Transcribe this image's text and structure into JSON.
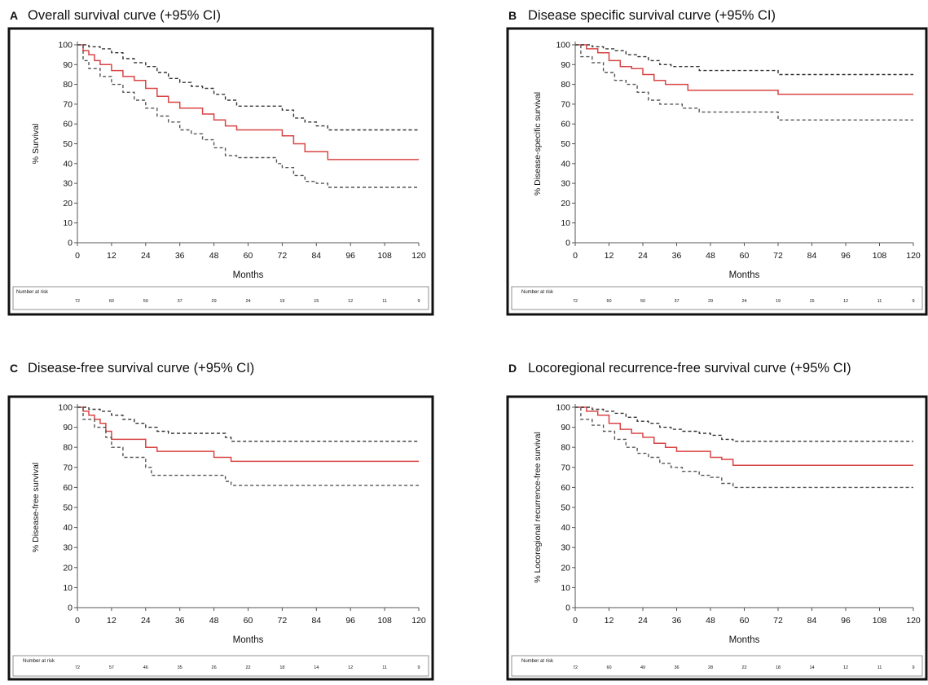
{
  "chart_data": [
    {
      "type": "line",
      "letter": "A",
      "title": "Overall survival curve (+95% CI)",
      "xlabel": "Months",
      "ylabel": "% Survival",
      "xlim": [
        0,
        120
      ],
      "ylim": [
        0,
        100
      ],
      "x_ticks": [
        "0",
        "12",
        "24",
        "36",
        "48",
        "60",
        "72",
        "84",
        "96",
        "108",
        "120"
      ],
      "y_ticks": [
        "0",
        "10",
        "20",
        "30",
        "40",
        "50",
        "60",
        "70",
        "80",
        "90",
        "100"
      ],
      "risk_title": "Number at risk",
      "risk_numbers": [
        "72",
        "60",
        "50",
        "37",
        "29",
        "24",
        "19",
        "15",
        "12",
        "11",
        "9"
      ],
      "series": [
        {
          "role": "estimate",
          "color": "#d94444",
          "x": [
            0,
            2,
            4,
            6,
            8,
            12,
            16,
            20,
            24,
            28,
            32,
            36,
            40,
            44,
            48,
            52,
            56,
            60,
            70,
            72,
            76,
            80,
            84,
            88,
            120
          ],
          "y": [
            100,
            97,
            95,
            92,
            90,
            87,
            84,
            82,
            78,
            74,
            71,
            68,
            68,
            65,
            62,
            59,
            57,
            57,
            57,
            54,
            50,
            46,
            46,
            42,
            42
          ]
        },
        {
          "role": "upper",
          "color": "#333333",
          "x": [
            0,
            4,
            8,
            12,
            16,
            20,
            24,
            28,
            32,
            36,
            40,
            44,
            48,
            52,
            56,
            60,
            70,
            72,
            76,
            80,
            84,
            88,
            120
          ],
          "y": [
            100,
            99,
            98,
            96,
            93,
            91,
            89,
            86,
            83,
            81,
            79,
            78,
            75,
            72,
            69,
            69,
            69,
            67,
            63,
            61,
            59,
            57,
            57
          ]
        },
        {
          "role": "lower",
          "color": "#555555",
          "x": [
            0,
            2,
            4,
            8,
            12,
            16,
            20,
            24,
            28,
            32,
            36,
            40,
            44,
            48,
            52,
            56,
            60,
            70,
            72,
            76,
            80,
            84,
            88,
            120
          ],
          "y": [
            100,
            92,
            88,
            84,
            80,
            76,
            72,
            68,
            64,
            61,
            57,
            55,
            52,
            48,
            44,
            43,
            43,
            40,
            38,
            34,
            31,
            30,
            28,
            28
          ]
        }
      ]
    },
    {
      "type": "line",
      "letter": "B",
      "title": "Disease specific survival curve  (+95% CI)",
      "xlabel": "Months",
      "ylabel": "% Disease-specific survival",
      "xlim": [
        0,
        120
      ],
      "ylim": [
        0,
        100
      ],
      "x_ticks": [
        "0",
        "12",
        "24",
        "36",
        "48",
        "60",
        "72",
        "84",
        "96",
        "108",
        "120"
      ],
      "y_ticks": [
        "0",
        "10",
        "20",
        "30",
        "40",
        "50",
        "60",
        "70",
        "80",
        "90",
        "100"
      ],
      "risk_title": "Number at risk",
      "risk_numbers": [
        "72",
        "60",
        "50",
        "37",
        "29",
        "24",
        "19",
        "15",
        "12",
        "11",
        "9"
      ],
      "series": [
        {
          "role": "estimate",
          "color": "#d94444",
          "x": [
            0,
            4,
            8,
            12,
            16,
            20,
            24,
            28,
            32,
            36,
            40,
            44,
            48,
            60,
            72,
            120
          ],
          "y": [
            100,
            98,
            96,
            92,
            89,
            88,
            85,
            82,
            80,
            80,
            77,
            77,
            77,
            77,
            75,
            75
          ]
        },
        {
          "role": "upper",
          "color": "#333333",
          "x": [
            0,
            6,
            10,
            14,
            18,
            22,
            26,
            30,
            34,
            38,
            44,
            48,
            60,
            72,
            120
          ],
          "y": [
            100,
            99,
            98,
            97,
            95,
            94,
            92,
            90,
            89,
            89,
            87,
            87,
            87,
            85,
            85
          ]
        },
        {
          "role": "lower",
          "color": "#555555",
          "x": [
            0,
            2,
            6,
            10,
            14,
            18,
            22,
            26,
            30,
            34,
            38,
            44,
            48,
            60,
            72,
            120
          ],
          "y": [
            100,
            94,
            91,
            86,
            82,
            80,
            76,
            72,
            70,
            70,
            68,
            66,
            66,
            66,
            62,
            62
          ]
        }
      ]
    },
    {
      "type": "line",
      "letter": "C",
      "title": "Disease-free survival curve (+95% CI)",
      "xlabel": "Months",
      "ylabel": "% Disease-free survival",
      "xlim": [
        0,
        120
      ],
      "ylim": [
        0,
        100
      ],
      "x_ticks": [
        "0",
        "12",
        "24",
        "36",
        "48",
        "60",
        "72",
        "84",
        "96",
        "108",
        "120"
      ],
      "y_ticks": [
        "0",
        "10",
        "20",
        "30",
        "40",
        "50",
        "60",
        "70",
        "80",
        "90",
        "100"
      ],
      "risk_title": "Number at risk",
      "risk_numbers": [
        "72",
        "57",
        "46",
        "35",
        "26",
        "22",
        "18",
        "14",
        "12",
        "11",
        "9"
      ],
      "series": [
        {
          "role": "estimate",
          "color": "#d94444",
          "x": [
            0,
            2,
            4,
            6,
            8,
            10,
            12,
            14,
            22,
            24,
            28,
            48,
            54,
            60,
            120
          ],
          "y": [
            100,
            98,
            96,
            94,
            92,
            88,
            84,
            84,
            84,
            80,
            78,
            75,
            73,
            73,
            73
          ]
        },
        {
          "role": "upper",
          "color": "#333333",
          "x": [
            0,
            4,
            8,
            12,
            16,
            20,
            24,
            28,
            32,
            48,
            52,
            54,
            60,
            120
          ],
          "y": [
            100,
            99,
            98,
            96,
            94,
            92,
            90,
            88,
            87,
            87,
            85,
            83,
            83,
            83
          ]
        },
        {
          "role": "lower",
          "color": "#555555",
          "x": [
            0,
            2,
            6,
            10,
            12,
            16,
            20,
            24,
            26,
            28,
            48,
            52,
            54,
            60,
            120
          ],
          "y": [
            100,
            94,
            90,
            85,
            80,
            75,
            75,
            70,
            66,
            66,
            66,
            63,
            61,
            61,
            61
          ]
        }
      ]
    },
    {
      "type": "line",
      "letter": "D",
      "title": "Locoregional recurrence-free survival curve (+95% CI)",
      "xlabel": "Months",
      "ylabel": "% Locoregional recurrence-free survival",
      "xlim": [
        0,
        120
      ],
      "ylim": [
        0,
        100
      ],
      "x_ticks": [
        "0",
        "12",
        "24",
        "36",
        "48",
        "60",
        "72",
        "84",
        "96",
        "108",
        "120"
      ],
      "y_ticks": [
        "0",
        "10",
        "20",
        "30",
        "40",
        "50",
        "60",
        "70",
        "80",
        "90",
        "100"
      ],
      "risk_title": "Number at risk",
      "risk_numbers": [
        "72",
        "60",
        "49",
        "36",
        "28",
        "22",
        "18",
        "14",
        "12",
        "11",
        "9"
      ],
      "series": [
        {
          "role": "estimate",
          "color": "#d94444",
          "x": [
            0,
            4,
            8,
            12,
            16,
            20,
            24,
            28,
            32,
            36,
            44,
            48,
            52,
            56,
            120
          ],
          "y": [
            100,
            98,
            96,
            92,
            89,
            87,
            85,
            82,
            80,
            78,
            78,
            75,
            74,
            71,
            71
          ]
        },
        {
          "role": "upper",
          "color": "#333333",
          "x": [
            0,
            6,
            10,
            14,
            18,
            22,
            26,
            30,
            34,
            38,
            44,
            48,
            52,
            56,
            120
          ],
          "y": [
            100,
            99,
            98,
            97,
            95,
            93,
            92,
            90,
            89,
            88,
            87,
            86,
            84,
            83,
            83
          ]
        },
        {
          "role": "lower",
          "color": "#555555",
          "x": [
            0,
            2,
            6,
            10,
            14,
            18,
            22,
            26,
            30,
            34,
            38,
            44,
            48,
            52,
            56,
            120
          ],
          "y": [
            100,
            94,
            91,
            88,
            84,
            80,
            77,
            75,
            72,
            70,
            68,
            66,
            65,
            62,
            60,
            60
          ]
        }
      ]
    }
  ]
}
